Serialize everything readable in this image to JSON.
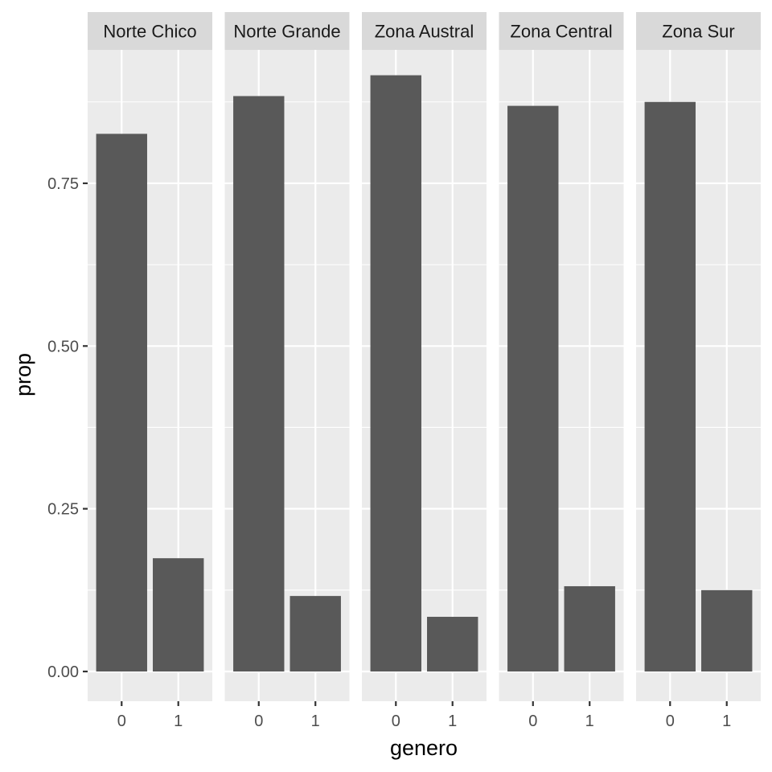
{
  "chart_data": {
    "type": "bar",
    "xlabel": "genero",
    "ylabel": "prop",
    "categories": [
      "0",
      "1"
    ],
    "ylim": [
      -0.0457,
      0.955
    ],
    "yticks": [
      0.0,
      0.25,
      0.5,
      0.75
    ],
    "ytick_labels": [
      "0.00",
      "0.25",
      "0.50",
      "0.75"
    ],
    "grid": true,
    "legend": "none",
    "bar_color": "#595959",
    "panel_color": "#ebebeb",
    "strip_color": "#d9d9d9",
    "facets": [
      {
        "label": "Norte Chico",
        "values": [
          0.826,
          0.174
        ]
      },
      {
        "label": "Norte Grande",
        "values": [
          0.884,
          0.116
        ]
      },
      {
        "label": "Zona Austral",
        "values": [
          0.916,
          0.084
        ]
      },
      {
        "label": "Zona Central",
        "values": [
          0.869,
          0.131
        ]
      },
      {
        "label": "Zona Sur",
        "values": [
          0.875,
          0.125
        ]
      }
    ]
  }
}
